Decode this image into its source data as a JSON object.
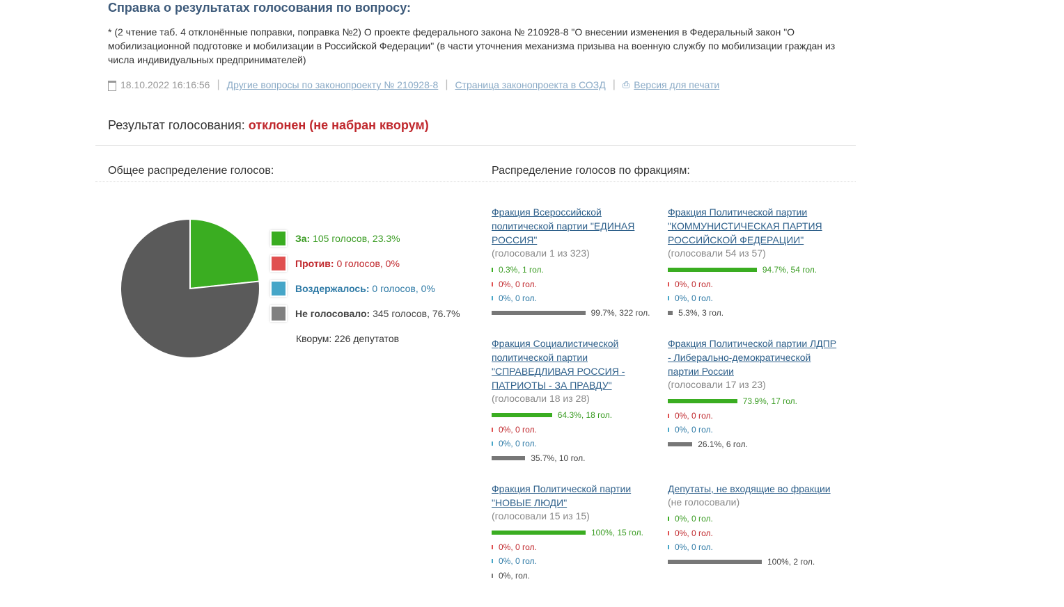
{
  "page": {
    "title": "Справка о результатах голосования по вопросу:",
    "description": "* (2 чтение таб. 4 отклонённые поправки, поправка №2) О проекте федерального закона № 210928-8 \"О внесении изменения в Федеральный закон \"О мобилизационной подготовке и мобилизации в Российской Федерации\" (в части уточнения механизма призыва на военную службу по мобилизации граждан из числа индивидуальных предпринимателей)",
    "date": "18.10.2022 16:16:56",
    "link_other": "Другие вопросы по законопроекту № 210928-8",
    "link_sozd": "Страница законопроекта в СОЗД",
    "link_print": "Версия для печати",
    "result_label": "Результат голосования:",
    "result_value": "отклонен (не набран кворум)",
    "overall_heading": "Общее распределение голосов:",
    "fractions_heading": "Распределение голосов по фракциям:"
  },
  "colors": {
    "for": "#3aad21",
    "against": "#e05050",
    "abstain": "#46a6c8",
    "not_voted": "#5a5a5a"
  },
  "legend": {
    "for": {
      "label": "За:",
      "value": "105 голосов, 23.3%"
    },
    "against": {
      "label": "Против:",
      "value": "0 голосов, 0%"
    },
    "abstain": {
      "label": "Воздержалось:",
      "value": "0 голосов, 0%"
    },
    "not_voted": {
      "label": "Не голосовало:",
      "value": "345 голосов, 76.7%"
    },
    "quorum": "Кворум: 226 депутатов"
  },
  "chart_data": {
    "type": "pie",
    "categories": [
      "За",
      "Против",
      "Воздержалось",
      "Не голосовало"
    ],
    "values": [
      105,
      0,
      0,
      345
    ]
  },
  "fractions": [
    {
      "name": "Фракция Всероссийской политической партии \"ЕДИНАЯ РОССИЯ\"",
      "voted": "(голосовали 1 из 323)",
      "rows": [
        {
          "kind": "for",
          "pct": 0.3,
          "text": "0.3%, 1 гол."
        },
        {
          "kind": "against",
          "pct": 0,
          "text": "0%, 0 гол."
        },
        {
          "kind": "abstain",
          "pct": 0,
          "text": "0%, 0 гол."
        },
        {
          "kind": "not_voted",
          "pct": 99.7,
          "text": "99.7%, 322 гол."
        }
      ]
    },
    {
      "name": "Фракция Политической партии \"КОММУНИСТИЧЕСКАЯ ПАРТИЯ РОССИЙСКОЙ ФЕДЕРАЦИИ\"",
      "voted": "(голосовали 54 из 57)",
      "rows": [
        {
          "kind": "for",
          "pct": 94.7,
          "text": "94.7%, 54 гол."
        },
        {
          "kind": "against",
          "pct": 0,
          "text": "0%, 0 гол."
        },
        {
          "kind": "abstain",
          "pct": 0,
          "text": "0%, 0 гол."
        },
        {
          "kind": "not_voted",
          "pct": 5.3,
          "text": "5.3%, 3 гол."
        }
      ]
    },
    {
      "name": "Фракция Социалистической политической партии \"СПРАВЕДЛИВАЯ РОССИЯ - ПАТРИОТЫ - ЗА ПРАВДУ\"",
      "voted": "(голосовали 18 из 28)",
      "rows": [
        {
          "kind": "for",
          "pct": 64.3,
          "text": "64.3%, 18 гол."
        },
        {
          "kind": "against",
          "pct": 0,
          "text": "0%, 0 гол."
        },
        {
          "kind": "abstain",
          "pct": 0,
          "text": "0%, 0 гол."
        },
        {
          "kind": "not_voted",
          "pct": 35.7,
          "text": "35.7%, 10 гол."
        }
      ]
    },
    {
      "name": "Фракция Политической партии ЛДПР - Либерально-демократической партии России",
      "voted": "(голосовали 17 из 23)",
      "rows": [
        {
          "kind": "for",
          "pct": 73.9,
          "text": "73.9%, 17 гол."
        },
        {
          "kind": "against",
          "pct": 0,
          "text": "0%, 0 гол."
        },
        {
          "kind": "abstain",
          "pct": 0,
          "text": "0%, 0 гол."
        },
        {
          "kind": "not_voted",
          "pct": 26.1,
          "text": "26.1%, 6 гол."
        }
      ]
    },
    {
      "name": "Фракция Политической партии \"НОВЫЕ ЛЮДИ\"",
      "voted": "(голосовали 15 из 15)",
      "rows": [
        {
          "kind": "for",
          "pct": 100,
          "text": "100%, 15 гол."
        },
        {
          "kind": "against",
          "pct": 0,
          "text": "0%, 0 гол."
        },
        {
          "kind": "abstain",
          "pct": 0,
          "text": "0%, 0 гол."
        },
        {
          "kind": "not_voted",
          "pct": 0,
          "text": "0%, гол."
        }
      ]
    },
    {
      "name": "Депутаты, не входящие во фракции",
      "voted": "(не голосовали)",
      "rows": [
        {
          "kind": "for",
          "pct": 0,
          "text": "0%, 0 гол."
        },
        {
          "kind": "against",
          "pct": 0,
          "text": "0%, 0 гол."
        },
        {
          "kind": "abstain",
          "pct": 0,
          "text": "0%, 0 гол."
        },
        {
          "kind": "not_voted",
          "pct": 100,
          "text": "100%, 2 гол."
        }
      ]
    }
  ]
}
